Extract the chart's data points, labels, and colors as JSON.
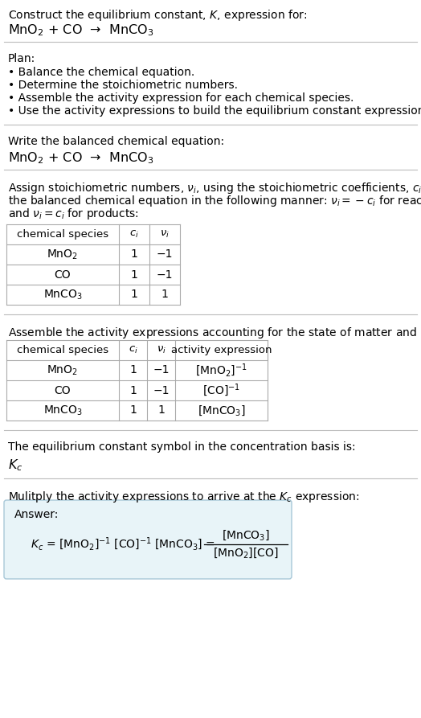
{
  "title_line1": "Construct the equilibrium constant, $K$, expression for:",
  "title_line2": "MnO$_2$ + CO  →  MnCO$_3$",
  "plan_header": "Plan:",
  "plan_items": [
    "• Balance the chemical equation.",
    "• Determine the stoichiometric numbers.",
    "• Assemble the activity expression for each chemical species.",
    "• Use the activity expressions to build the equilibrium constant expression."
  ],
  "balanced_eq_header": "Write the balanced chemical equation:",
  "balanced_eq": "MnO$_2$ + CO  →  MnCO$_3$",
  "stoich_intro_lines": [
    "Assign stoichiometric numbers, $\\nu_i$, using the stoichiometric coefficients, $c_i$, from",
    "the balanced chemical equation in the following manner: $\\nu_i = -c_i$ for reactants",
    "and $\\nu_i = c_i$ for products:"
  ],
  "table1_headers": [
    "chemical species",
    "$c_i$",
    "$\\nu_i$"
  ],
  "table1_rows": [
    [
      "MnO$_2$",
      "1",
      "−1"
    ],
    [
      "CO",
      "1",
      "−1"
    ],
    [
      "MnCO$_3$",
      "1",
      "1"
    ]
  ],
  "activity_intro": "Assemble the activity expressions accounting for the state of matter and $\\nu_i$:",
  "table2_headers": [
    "chemical species",
    "$c_i$",
    "$\\nu_i$",
    "activity expression"
  ],
  "table2_rows": [
    [
      "MnO$_2$",
      "1",
      "−1",
      "[MnO$_2$]$^{-1}$"
    ],
    [
      "CO",
      "1",
      "−1",
      "[CO]$^{-1}$"
    ],
    [
      "MnCO$_3$",
      "1",
      "1",
      "[MnCO$_3$]"
    ]
  ],
  "kc_intro": "The equilibrium constant symbol in the concentration basis is:",
  "kc_symbol": "$K_c$",
  "multiply_intro": "Mulitply the activity expressions to arrive at the $K_c$ expression:",
  "answer_label": "Answer:",
  "bg_color": "#ffffff",
  "answer_box_color": "#e8f4f8",
  "answer_box_border": "#a8c8d8",
  "table_border_color": "#aaaaaa",
  "separator_color": "#bbbbbb",
  "text_color": "#000000",
  "font_size": 10.0,
  "eq_font_size": 11.5,
  "small_font_size": 9.5
}
